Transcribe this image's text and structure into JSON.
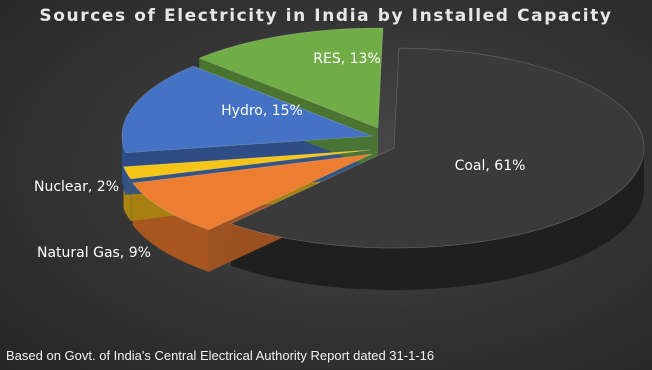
{
  "chart_data": {
    "type": "pie",
    "title": "Sources of Electricity in India by Installed Capacity",
    "slices": [
      {
        "name": "Coal",
        "value": 61,
        "label": "Coal, 61%",
        "color": "#3a3a3a",
        "side": "#1f1f1f",
        "label_color": "#ffffff"
      },
      {
        "name": "Natural Gas",
        "value": 9,
        "label": "Natural Gas, 9%",
        "color": "#ed7d31",
        "side": "#a8561f",
        "label_color": "#ffffff"
      },
      {
        "name": "Nuclear",
        "value": 2,
        "label": "Nuclear, 2%",
        "color": "#f5c518",
        "side": "#a78510",
        "label_color": "#ffffff"
      },
      {
        "name": "Hydro",
        "value": 15,
        "label": "Hydro, 15%",
        "color": "#4472c4",
        "side": "#2c4f8c",
        "label_color": "#ffffff"
      },
      {
        "name": "RES",
        "value": 13,
        "label": "RES, 13%",
        "color": "#70ad47",
        "side": "#4b7a2d",
        "label_color": "#ffffff"
      }
    ],
    "style": "3d-exploded",
    "footnote": "Based on Govt. of India's Central Electrical Authority Report dated 31-1-16"
  }
}
